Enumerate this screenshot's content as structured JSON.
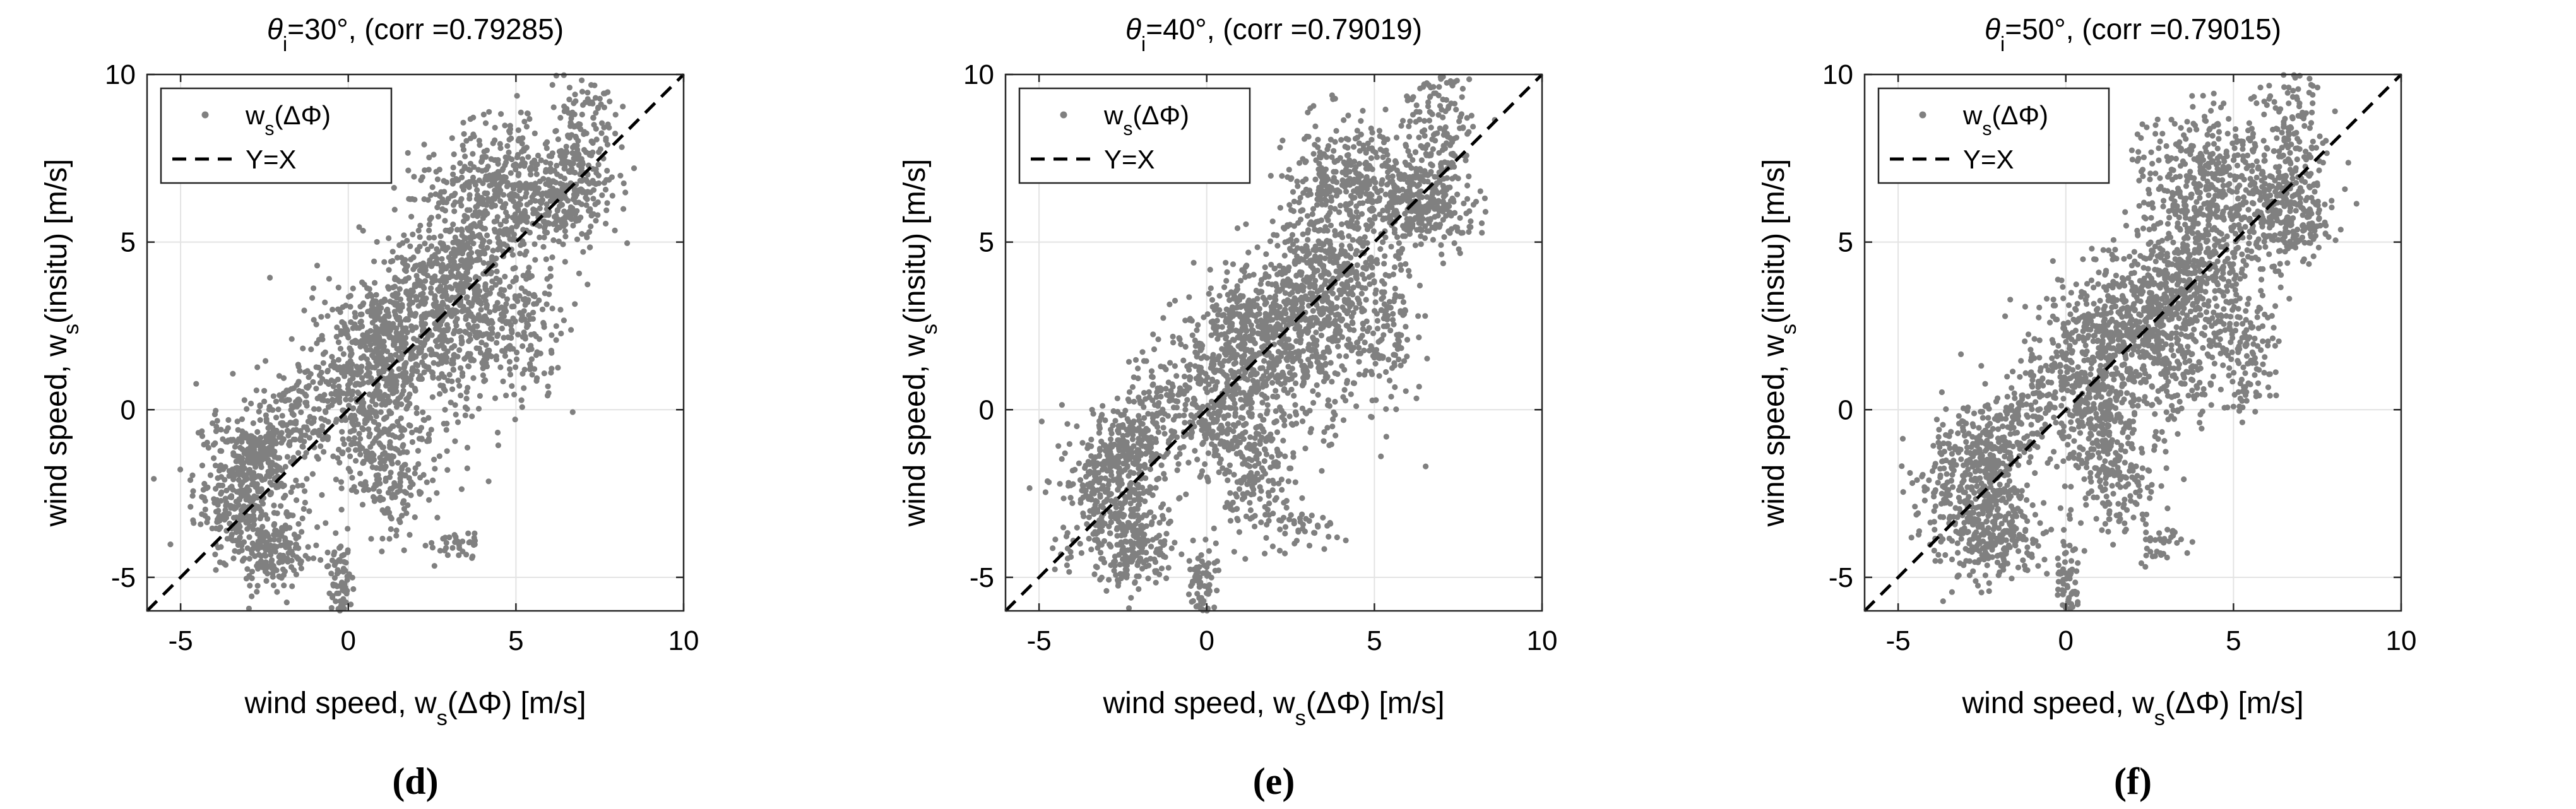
{
  "chart_data": [
    {
      "type": "scatter",
      "title_theta": "θ",
      "title_sub": "i",
      "title_rest": "=30°, (corr =0.79285)",
      "xlabel_pre": "wind speed, w",
      "xlabel_sub": "s",
      "xlabel_post": "(ΔΦ) [m/s]",
      "ylabel_pre": "wind speed, w",
      "ylabel_sub": "s",
      "ylabel_post": "(insitu) [m/s]",
      "xlim": [
        -6,
        10
      ],
      "ylim": [
        -6,
        10
      ],
      "xticks": [
        -5,
        0,
        5,
        10
      ],
      "yticks": [
        -5,
        0,
        5,
        10
      ],
      "grid": true,
      "legend_position": "top-left",
      "legend": [
        {
          "pre": "w",
          "sub": "s",
          "post": "(ΔΦ)",
          "kind": "marker"
        },
        {
          "pre": "Y=X",
          "sub": "",
          "post": "",
          "kind": "dashed"
        }
      ],
      "panel_label": "(d)",
      "series": [
        {
          "name": "ws(ΔΦ)",
          "color": "#808080",
          "clusters": [
            [
              -3.0,
              -2.5,
              0.8,
              1.2,
              420
            ],
            [
              -2.6,
              -1.2,
              0.5,
              0.6,
              120
            ],
            [
              -2.2,
              -4.2,
              0.6,
              0.5,
              120
            ],
            [
              -0.2,
              -5.2,
              0.2,
              0.7,
              70
            ],
            [
              0.5,
              0.5,
              0.9,
              1.3,
              450
            ],
            [
              1.3,
              2.5,
              0.9,
              0.9,
              250
            ],
            [
              2.8,
              2.5,
              1.0,
              1.6,
              450
            ],
            [
              3.8,
              4.0,
              0.9,
              1.2,
              300
            ],
            [
              4.3,
              6.5,
              1.1,
              1.0,
              380
            ],
            [
              6.5,
              6.5,
              0.7,
              0.8,
              280
            ],
            [
              7.0,
              8.8,
              0.5,
              0.9,
              110
            ],
            [
              5.3,
              2.2,
              0.5,
              1.0,
              110
            ],
            [
              1.3,
              -2.0,
              0.6,
              0.9,
              150
            ],
            [
              3.2,
              -4.0,
              0.5,
              0.3,
              35
            ],
            [
              -1.6,
              0.0,
              0.5,
              0.7,
              90
            ]
          ]
        }
      ],
      "reference_line": {
        "name": "Y=X",
        "from": [
          -6,
          -6
        ],
        "to": [
          10,
          10
        ]
      }
    },
    {
      "type": "scatter",
      "title_theta": "θ",
      "title_sub": "i",
      "title_rest": "=40°, (corr =0.79019)",
      "xlabel_pre": "wind speed, w",
      "xlabel_sub": "s",
      "xlabel_post": "(ΔΦ) [m/s]",
      "ylabel_pre": "wind speed, w",
      "ylabel_sub": "s",
      "ylabel_post": "(insitu) [m/s]",
      "xlim": [
        -6,
        10
      ],
      "ylim": [
        -6,
        10
      ],
      "xticks": [
        -5,
        0,
        5,
        10
      ],
      "yticks": [
        -5,
        0,
        5,
        10
      ],
      "grid": true,
      "legend_position": "top-left",
      "legend": [
        {
          "pre": "w",
          "sub": "s",
          "post": "(ΔΦ)",
          "kind": "marker"
        },
        {
          "pre": "Y=X",
          "sub": "",
          "post": "",
          "kind": "dashed"
        }
      ],
      "panel_label": "(e)",
      "series": [
        {
          "name": "ws(ΔΦ)",
          "color": "#808080",
          "clusters": [
            [
              -2.8,
              -2.5,
              0.8,
              1.2,
              420
            ],
            [
              -2.4,
              -1.2,
              0.5,
              0.6,
              120
            ],
            [
              -2.0,
              -4.3,
              0.6,
              0.5,
              120
            ],
            [
              -0.1,
              -5.3,
              0.2,
              0.7,
              70
            ],
            [
              0.6,
              0.5,
              0.9,
              1.3,
              450
            ],
            [
              1.4,
              2.5,
              0.9,
              0.9,
              250
            ],
            [
              2.9,
              2.5,
              1.0,
              1.6,
              450
            ],
            [
              3.9,
              4.0,
              0.9,
              1.2,
              300
            ],
            [
              4.4,
              6.6,
              1.1,
              1.0,
              380
            ],
            [
              6.6,
              6.4,
              0.7,
              0.8,
              280
            ],
            [
              6.9,
              8.7,
              0.5,
              0.9,
              110
            ],
            [
              5.4,
              2.2,
              0.5,
              1.0,
              110
            ],
            [
              1.4,
              -2.0,
              0.6,
              0.9,
              150
            ],
            [
              3.0,
              -3.5,
              0.5,
              0.3,
              35
            ],
            [
              -1.4,
              0.0,
              0.5,
              0.7,
              90
            ]
          ]
        }
      ],
      "reference_line": {
        "name": "Y=X",
        "from": [
          -6,
          -6
        ],
        "to": [
          10,
          10
        ]
      }
    },
    {
      "type": "scatter",
      "title_theta": "θ",
      "title_sub": "i",
      "title_rest": "=50°, (corr =0.79015)",
      "xlabel_pre": "wind speed, w",
      "xlabel_sub": "s",
      "xlabel_post": "(ΔΦ) [m/s]",
      "ylabel_pre": "wind speed, w",
      "ylabel_sub": "s",
      "ylabel_post": "(insitu) [m/s]",
      "xlim": [
        -6,
        10
      ],
      "ylim": [
        -6,
        10
      ],
      "xticks": [
        -5,
        0,
        5,
        10
      ],
      "yticks": [
        -5,
        0,
        5,
        10
      ],
      "grid": true,
      "legend_position": "top-left",
      "legend": [
        {
          "pre": "w",
          "sub": "s",
          "post": "(ΔΦ)",
          "kind": "marker"
        },
        {
          "pre": "Y=X",
          "sub": "",
          "post": "",
          "kind": "dashed"
        }
      ],
      "panel_label": "(f)",
      "series": [
        {
          "name": "ws(ΔΦ)",
          "color": "#808080",
          "clusters": [
            [
              -2.7,
              -2.5,
              0.8,
              1.2,
              420
            ],
            [
              -2.3,
              -1.2,
              0.5,
              0.6,
              120
            ],
            [
              -1.9,
              -4.0,
              0.6,
              0.5,
              120
            ],
            [
              0.0,
              -5.3,
              0.2,
              0.7,
              70
            ],
            [
              0.7,
              0.5,
              0.9,
              1.3,
              450
            ],
            [
              1.6,
              2.6,
              0.9,
              0.9,
              250
            ],
            [
              3.0,
              2.5,
              1.0,
              1.6,
              450
            ],
            [
              4.0,
              4.2,
              0.9,
              1.2,
              300
            ],
            [
              4.2,
              7.0,
              1.1,
              1.0,
              380
            ],
            [
              6.6,
              6.0,
              0.7,
              0.8,
              280
            ],
            [
              6.8,
              8.5,
              0.5,
              0.9,
              110
            ],
            [
              5.4,
              1.6,
              0.5,
              1.0,
              110
            ],
            [
              1.5,
              -2.0,
              0.6,
              0.9,
              150
            ],
            [
              2.8,
              -4.0,
              0.5,
              0.3,
              35
            ],
            [
              -1.2,
              0.0,
              0.5,
              0.7,
              90
            ]
          ]
        }
      ],
      "reference_line": {
        "name": "Y=X",
        "from": [
          -6,
          -6
        ],
        "to": [
          10,
          10
        ]
      }
    }
  ]
}
